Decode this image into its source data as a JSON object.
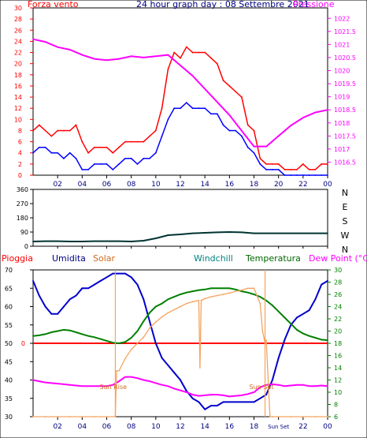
{
  "chart_data": [
    {
      "type": "line",
      "title": "24 hour graph day : 08 Settembre 2021",
      "left_label": "Forza vento",
      "right_label": "Pressione",
      "x_ticks": [
        "02",
        "04",
        "06",
        "08",
        "10",
        "12",
        "14",
        "16",
        "18",
        "20",
        "22",
        "00"
      ],
      "y_left_ticks": [
        "0",
        "2",
        "4",
        "6",
        "8",
        "10",
        "12",
        "14",
        "16",
        "18",
        "20",
        "22",
        "24",
        "26",
        "28",
        "30"
      ],
      "y_left_range": [
        0,
        30
      ],
      "y_right_ticks": [
        "1016.5",
        "1017",
        "1017.5",
        "1018",
        "1018.5",
        "1019",
        "1019.5",
        "1020",
        "1020.5",
        "1021",
        "1021.5",
        "1022"
      ],
      "y_right_range": [
        1016,
        1022.4
      ],
      "colors": {
        "gust": "#ff0000",
        "wind": "#0000ff",
        "pressure": "#ff00ff",
        "axis": "#ff0000",
        "right_axis": "#ff00ff"
      },
      "series": [
        {
          "key": "gust",
          "x": [
            0,
            0.5,
            1,
            1.5,
            2,
            2.5,
            3,
            3.5,
            4,
            4.5,
            5,
            5.5,
            6,
            6.5,
            7,
            7.5,
            8,
            8.5,
            9,
            9.5,
            10,
            10.5,
            11,
            11.5,
            12,
            12.5,
            13,
            13.5,
            14,
            14.5,
            15,
            15.5,
            16,
            16.5,
            17,
            17.5,
            18,
            18.5,
            19,
            19.5,
            20,
            20.5,
            21,
            21.5,
            22,
            22.5,
            23,
            23.5,
            24
          ],
          "values": [
            8,
            9,
            8,
            7,
            8,
            8,
            8,
            9,
            6,
            4,
            5,
            5,
            5,
            4,
            5,
            6,
            6,
            6,
            6,
            7,
            8,
            12,
            19,
            22,
            21,
            23,
            22,
            22,
            22,
            21,
            20,
            17,
            16,
            15,
            14,
            9,
            8,
            3,
            2,
            2,
            2,
            1,
            1,
            1,
            2,
            1,
            1,
            2,
            2
          ]
        },
        {
          "key": "wind",
          "x": [
            0,
            0.5,
            1,
            1.5,
            2,
            2.5,
            3,
            3.5,
            4,
            4.5,
            5,
            5.5,
            6,
            6.5,
            7,
            7.5,
            8,
            8.5,
            9,
            9.5,
            10,
            10.5,
            11,
            11.5,
            12,
            12.5,
            13,
            13.5,
            14,
            14.5,
            15,
            15.5,
            16,
            16.5,
            17,
            17.5,
            18,
            18.5,
            19,
            19.5,
            20,
            20.5,
            21,
            21.5,
            22,
            22.5,
            23,
            23.5,
            24
          ],
          "values": [
            4,
            5,
            5,
            4,
            4,
            3,
            4,
            3,
            1,
            1,
            2,
            2,
            2,
            1,
            2,
            3,
            3,
            2,
            3,
            3,
            4,
            7,
            10,
            12,
            12,
            13,
            12,
            12,
            12,
            11,
            11,
            9,
            8,
            8,
            7,
            5,
            4,
            2,
            1,
            1,
            1,
            0,
            0,
            0,
            0,
            0,
            0,
            0,
            0
          ]
        },
        {
          "key": "pressure",
          "x": [
            0,
            1,
            2,
            3,
            4,
            5,
            6,
            7,
            8,
            9,
            10,
            11,
            12,
            13,
            14,
            15,
            16,
            17,
            18,
            19,
            20,
            21,
            22,
            23,
            24
          ],
          "values": [
            1021.2,
            1021.1,
            1020.9,
            1020.8,
            1020.6,
            1020.45,
            1020.4,
            1020.45,
            1020.55,
            1020.5,
            1020.55,
            1020.6,
            1020.2,
            1019.8,
            1019.3,
            1018.8,
            1018.3,
            1017.7,
            1017.1,
            1017.1,
            1017.5,
            1017.9,
            1018.2,
            1018.4,
            1018.5
          ]
        }
      ]
    },
    {
      "type": "line",
      "title": "",
      "x_ticks": [
        "02",
        "04",
        "06",
        "08",
        "10",
        "12",
        "14",
        "16",
        "18",
        "20",
        "22",
        "00"
      ],
      "y_left_ticks": [
        "0",
        "90",
        "180",
        "270",
        "360"
      ],
      "y_left_range": [
        0,
        360
      ],
      "y_right_ticks": [
        "N",
        "W",
        "S",
        "E",
        "N"
      ],
      "colors": {
        "direction": "#003333",
        "axis": "#000000"
      },
      "series": [
        {
          "key": "direction",
          "x": [
            0,
            1,
            2,
            3,
            4,
            5,
            6,
            7,
            8,
            9,
            10,
            11,
            12,
            13,
            14,
            15,
            16,
            17,
            18,
            19,
            20,
            21,
            22,
            23,
            24
          ],
          "values": [
            30,
            32,
            32,
            30,
            30,
            32,
            32,
            32,
            30,
            35,
            50,
            70,
            75,
            82,
            85,
            88,
            90,
            88,
            82,
            82,
            82,
            82,
            82,
            82,
            82
          ]
        }
      ]
    },
    {
      "type": "line",
      "title": "",
      "legend": [
        "Pioggia",
        "Umidita",
        "Solar",
        "Windchill",
        "Temperatura",
        "Dew Point (°C)"
      ],
      "legend_colors": [
        "#ff0000",
        "#000080",
        "#d2691e",
        "#008080",
        "#006600",
        "#ff00ff"
      ],
      "x_ticks": [
        "02",
        "04",
        "06",
        "08",
        "10",
        "12",
        "14",
        "16",
        "18",
        "Sun Set",
        "22",
        "00"
      ],
      "annotations": [
        "Sun Rise",
        "Sun Set"
      ],
      "rain_label": "0",
      "y_left_ticks": [
        "30",
        "35",
        "40",
        "45",
        "50",
        "55",
        "60",
        "65",
        "70"
      ],
      "y_left_range": [
        30,
        70
      ],
      "y_right_ticks": [
        "6",
        "8",
        "10",
        "12",
        "14",
        "16",
        "18",
        "20",
        "22",
        "24",
        "26",
        "28",
        "30"
      ],
      "y_right_range": [
        6,
        30
      ],
      "colors": {
        "humidity": "#0000cc",
        "temperature": "#008000",
        "dewpoint": "#ff00ff",
        "solar": "#f4a460",
        "rain": "#ff0000",
        "axis": "#000000",
        "right_axis": "#008000"
      },
      "series": [
        {
          "key": "humidity",
          "x": [
            0,
            0.5,
            1,
            1.5,
            2,
            2.5,
            3,
            3.5,
            4,
            4.5,
            5,
            5.5,
            6,
            6.5,
            7,
            7.5,
            8,
            8.5,
            9,
            9.5,
            10,
            10.5,
            11,
            11.5,
            12,
            12.5,
            13,
            13.5,
            14,
            14.5,
            15,
            15.5,
            16,
            16.5,
            17,
            17.5,
            18,
            18.5,
            19,
            19.5,
            20,
            20.5,
            21,
            21.5,
            22,
            22.5,
            23,
            23.5,
            24
          ],
          "values": [
            67,
            63,
            60,
            58,
            58,
            60,
            62,
            63,
            65,
            65,
            66,
            67,
            68,
            69,
            69,
            69,
            68,
            66,
            62,
            56,
            50,
            46,
            44,
            42,
            40,
            37,
            35,
            34,
            32,
            33,
            33,
            34,
            34,
            34,
            34,
            34,
            34,
            35,
            36,
            40,
            46,
            51,
            55,
            57,
            58,
            59,
            62,
            66,
            67
          ]
        },
        {
          "key": "temperature",
          "x": [
            0,
            0.5,
            1,
            1.5,
            2,
            2.5,
            3,
            3.5,
            4,
            4.5,
            5,
            5.5,
            6,
            6.5,
            7,
            7.5,
            8,
            8.5,
            9,
            9.5,
            10,
            10.5,
            11,
            11.5,
            12,
            12.5,
            13,
            13.5,
            14,
            14.5,
            15,
            15.5,
            16,
            16.5,
            17,
            17.5,
            18,
            18.5,
            19,
            19.5,
            20,
            20.5,
            21,
            21.5,
            22,
            22.5,
            23,
            23.5,
            24
          ],
          "values": [
            19.2,
            19.3,
            19.5,
            19.8,
            20.0,
            20.2,
            20.1,
            19.8,
            19.5,
            19.2,
            19.0,
            18.7,
            18.4,
            18.1,
            18.0,
            18.2,
            18.9,
            20.0,
            21.6,
            23.0,
            24.0,
            24.5,
            25.2,
            25.6,
            26.0,
            26.3,
            26.5,
            26.7,
            26.8,
            27.0,
            27.0,
            27.0,
            27.0,
            26.8,
            26.5,
            26.3,
            26.0,
            25.6,
            25.0,
            24.2,
            23.2,
            22.2,
            21.2,
            20.2,
            19.6,
            19.2,
            18.9,
            18.6,
            18.5
          ]
        },
        {
          "key": "dewpoint",
          "x": [
            0,
            0.5,
            1,
            1.5,
            2,
            2.5,
            3,
            3.5,
            4,
            4.5,
            5,
            5.5,
            6,
            6.5,
            7,
            7.5,
            8,
            8.5,
            9,
            9.5,
            10,
            10.5,
            11,
            11.5,
            12,
            12.5,
            13,
            13.5,
            14,
            14.5,
            15,
            15.5,
            16,
            16.5,
            17,
            17.5,
            18,
            18.5,
            19,
            19.5,
            20,
            20.5,
            21,
            21.5,
            22,
            22.5,
            23,
            23.5,
            24
          ],
          "values": [
            12.0,
            11.8,
            11.6,
            11.5,
            11.4,
            11.3,
            11.2,
            11.1,
            11.0,
            11.0,
            11.0,
            11.0,
            11.0,
            11.2,
            11.8,
            12.5,
            12.5,
            12.3,
            12.0,
            11.8,
            11.5,
            11.2,
            11.0,
            10.6,
            10.3,
            10.0,
            9.6,
            9.4,
            9.5,
            9.6,
            9.6,
            9.5,
            9.3,
            9.4,
            9.5,
            9.7,
            10.0,
            10.8,
            11.2,
            11.3,
            11.2,
            11.0,
            11.1,
            11.2,
            11.2,
            11.0,
            11.0,
            11.1,
            11.0
          ]
        },
        {
          "key": "solar",
          "x": [
            0,
            1,
            2,
            3,
            4,
            5,
            6,
            6.7,
            6.8,
            7,
            7.5,
            8,
            8.5,
            9,
            9.5,
            10,
            10.5,
            11,
            11.5,
            12,
            12.5,
            13,
            13.5,
            13.6,
            13.7,
            13.8,
            14,
            14.5,
            15,
            15.5,
            16,
            16.5,
            17,
            17.5,
            18,
            18.5,
            18.7,
            18.9,
            19.0,
            19.3,
            19.5,
            20,
            21,
            22,
            23,
            24
          ],
          "values": [
            6,
            6,
            6,
            6,
            6,
            6,
            6,
            6,
            13.5,
            13.5,
            15.5,
            17.0,
            18.0,
            19.0,
            20.5,
            21.5,
            22.3,
            23.0,
            23.5,
            24.0,
            24.5,
            24.8,
            25.0,
            14.0,
            25.0,
            25.1,
            25.3,
            25.6,
            25.8,
            26.0,
            26.2,
            26.5,
            26.7,
            27.0,
            27.0,
            24.5,
            20.0,
            18.0,
            18.5,
            6,
            6,
            6,
            6,
            6,
            6,
            6
          ]
        }
      ]
    }
  ]
}
